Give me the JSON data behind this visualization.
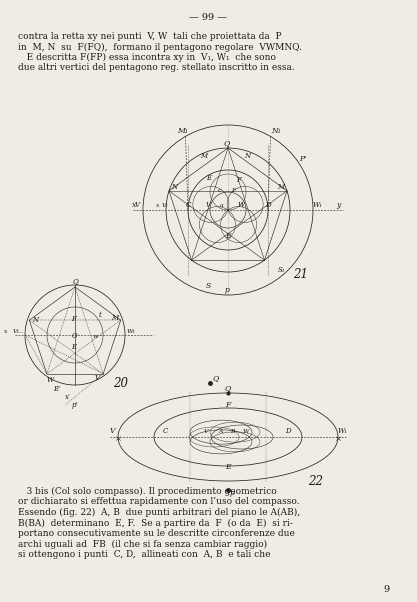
{
  "page_number": "— 99 —",
  "background_color": "#f0ece4",
  "text_color": "#1a1a1a",
  "top_text_lines": [
    "contra la retta xy nei punti  V, W  tali che proiettata da  P",
    "in  M, N  su  F(FQ),  formano il pentagono regolare  VWMNQ.",
    "   E descritta F(FP) essa incontra xy in  V₁, W₁  che sono",
    "due altri vertici del pentagono reg. stellato inscritto in essa."
  ],
  "bottom_text_lines": [
    "   3 bis (Col solo compasso). Il procedimento geometrico",
    "or dichiarato si effettua rapidamente con l’uso del compasso.",
    "Essendo (fig. 22)  A, B  due punti arbitrari del piano le A(AB),",
    "B(BA)  determinano  E, F.  Se a partire da  F  (o da  E)  si ri-",
    "portano consecutivamente su le descritte circonferenze due",
    "archi uguali ad  FB  (il che si fa senza cambiar raggio)",
    "si ottengono i punti  C, D,  allineati con  A, B  e tali che"
  ],
  "page_num": "9",
  "fig_color": "#222222"
}
